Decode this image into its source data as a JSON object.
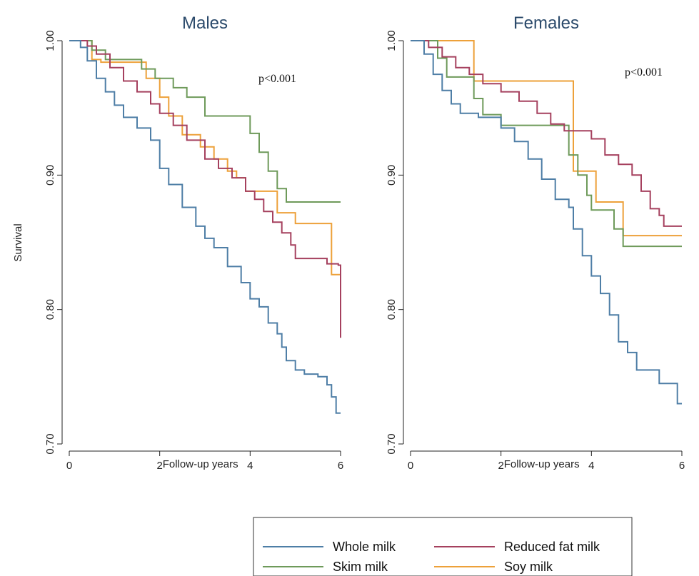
{
  "y_axis_label": "Survival",
  "legend": [
    {
      "label": "Whole milk",
      "color": "#4e7ea6"
    },
    {
      "label": "Reduced fat milk",
      "color": "#a5405e"
    },
    {
      "label": "Skim milk",
      "color": "#6e9a5a"
    },
    {
      "label": "Soy milk",
      "color": "#eda13a"
    }
  ],
  "chart_data": [
    {
      "type": "line",
      "step": true,
      "title": "Males",
      "xlabel": "Follow-up years",
      "ylabel": "Survival",
      "xlim": [
        0,
        6
      ],
      "ylim": [
        0.7,
        1.0
      ],
      "xticks": [
        "0",
        "2",
        "4",
        "6"
      ],
      "yticks": [
        "0.70",
        "0.80",
        "0.90",
        "1.00"
      ],
      "annotation": "p<0.001",
      "grid": false,
      "series": [
        {
          "name": "Whole milk",
          "color": "#4e7ea6",
          "x": [
            0,
            0.25,
            0.4,
            0.6,
            0.8,
            1.0,
            1.2,
            1.5,
            1.8,
            2.0,
            2.2,
            2.5,
            2.8,
            3.0,
            3.2,
            3.5,
            3.8,
            4.0,
            4.2,
            4.4,
            4.6,
            4.7,
            4.8,
            5.0,
            5.2,
            5.5,
            5.7,
            5.8,
            5.9,
            6.0
          ],
          "y": [
            1.0,
            0.995,
            0.985,
            0.972,
            0.962,
            0.952,
            0.943,
            0.935,
            0.926,
            0.905,
            0.893,
            0.876,
            0.862,
            0.853,
            0.846,
            0.832,
            0.82,
            0.808,
            0.802,
            0.79,
            0.782,
            0.772,
            0.762,
            0.755,
            0.752,
            0.75,
            0.744,
            0.735,
            0.723,
            0.723
          ]
        },
        {
          "name": "Reduced fat milk",
          "color": "#a5405e",
          "x": [
            0,
            0.4,
            0.6,
            0.9,
            1.2,
            1.5,
            1.8,
            2.0,
            2.3,
            2.6,
            3.0,
            3.3,
            3.6,
            3.9,
            4.1,
            4.3,
            4.5,
            4.7,
            4.9,
            5.0,
            5.4,
            5.7,
            5.95,
            6.0
          ],
          "y": [
            1.0,
            0.996,
            0.99,
            0.98,
            0.97,
            0.962,
            0.953,
            0.946,
            0.937,
            0.926,
            0.912,
            0.905,
            0.898,
            0.888,
            0.882,
            0.873,
            0.865,
            0.857,
            0.848,
            0.838,
            0.838,
            0.834,
            0.833,
            0.779
          ]
        },
        {
          "name": "Skim milk",
          "color": "#6e9a5a",
          "x": [
            0,
            0.5,
            0.8,
            1.6,
            1.9,
            2.3,
            2.6,
            3.0,
            3.5,
            4.0,
            4.2,
            4.4,
            4.6,
            4.8,
            6.0
          ],
          "y": [
            1.0,
            0.993,
            0.986,
            0.979,
            0.972,
            0.965,
            0.958,
            0.944,
            0.944,
            0.931,
            0.917,
            0.903,
            0.89,
            0.88,
            0.88
          ]
        },
        {
          "name": "Soy milk",
          "color": "#eda13a",
          "x": [
            0,
            0.5,
            0.7,
            1.4,
            1.7,
            2.0,
            2.2,
            2.5,
            2.9,
            3.2,
            3.5,
            3.7,
            3.9,
            4.3,
            4.6,
            5.0,
            5.5,
            5.8,
            6.0
          ],
          "y": [
            1.0,
            0.986,
            0.984,
            0.984,
            0.972,
            0.958,
            0.944,
            0.93,
            0.921,
            0.912,
            0.903,
            0.898,
            0.888,
            0.888,
            0.872,
            0.864,
            0.864,
            0.826,
            0.826
          ]
        }
      ]
    },
    {
      "type": "line",
      "step": true,
      "title": "Females",
      "xlabel": "Follow-up years",
      "ylabel": "Survival",
      "xlim": [
        0,
        6
      ],
      "ylim": [
        0.7,
        1.0
      ],
      "xticks": [
        "0",
        "2",
        "4",
        "6"
      ],
      "yticks": [
        "0.70",
        "0.80",
        "0.90",
        "1.00"
      ],
      "annotation": "p<0.001",
      "grid": false,
      "series": [
        {
          "name": "Whole milk",
          "color": "#4e7ea6",
          "x": [
            0,
            0.3,
            0.5,
            0.7,
            0.9,
            1.1,
            1.5,
            2.0,
            2.3,
            2.6,
            2.9,
            3.2,
            3.5,
            3.6,
            3.8,
            4.0,
            4.2,
            4.4,
            4.6,
            4.8,
            5.0,
            5.5,
            5.9,
            6.0
          ],
          "y": [
            1.0,
            0.99,
            0.975,
            0.963,
            0.953,
            0.946,
            0.943,
            0.935,
            0.925,
            0.912,
            0.897,
            0.882,
            0.876,
            0.86,
            0.84,
            0.825,
            0.812,
            0.796,
            0.776,
            0.768,
            0.755,
            0.745,
            0.73,
            0.73
          ]
        },
        {
          "name": "Reduced fat milk",
          "color": "#a5405e",
          "x": [
            0,
            0.4,
            0.7,
            1.0,
            1.3,
            1.6,
            2.0,
            2.4,
            2.8,
            3.1,
            3.4,
            3.6,
            4.0,
            4.3,
            4.6,
            4.9,
            5.1,
            5.3,
            5.5,
            5.6,
            5.8,
            6.0
          ],
          "y": [
            1.0,
            0.995,
            0.988,
            0.98,
            0.975,
            0.968,
            0.962,
            0.955,
            0.946,
            0.938,
            0.933,
            0.933,
            0.927,
            0.915,
            0.908,
            0.9,
            0.888,
            0.875,
            0.87,
            0.862,
            0.862,
            0.862
          ]
        },
        {
          "name": "Skim milk",
          "color": "#6e9a5a",
          "x": [
            0,
            0.6,
            0.8,
            1.4,
            1.6,
            2.0,
            3.3,
            3.5,
            3.7,
            3.9,
            4.0,
            4.5,
            4.7,
            6.0
          ],
          "y": [
            1.0,
            0.987,
            0.973,
            0.957,
            0.945,
            0.937,
            0.937,
            0.915,
            0.9,
            0.885,
            0.874,
            0.86,
            0.847,
            0.847
          ]
        },
        {
          "name": "Soy milk",
          "color": "#eda13a",
          "x": [
            0,
            1.2,
            1.4,
            3.4,
            3.6,
            4.1,
            4.7,
            6.0
          ],
          "y": [
            1.0,
            1.0,
            0.97,
            0.97,
            0.903,
            0.88,
            0.855,
            0.855
          ]
        }
      ]
    }
  ]
}
